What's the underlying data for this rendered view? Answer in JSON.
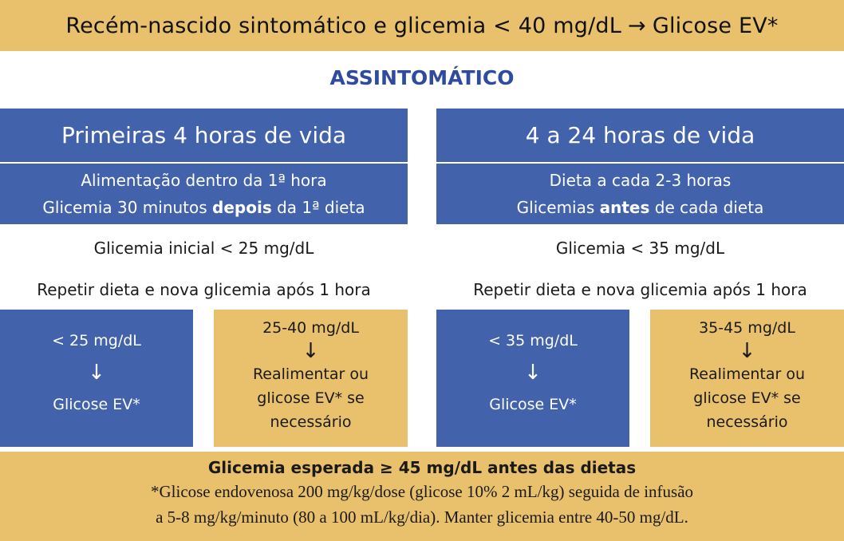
{
  "header": {
    "text": "Recém-nascido sintomático e glicemia < 40 mg/dL",
    "arrow": "→",
    "result": "Glicose EV*"
  },
  "section_title": "ASSINTOMÁTICO",
  "left": {
    "title": "Primeiras 4 horas de vida",
    "line1": "Alimentação dentro da 1ª hora",
    "line2_pre": "Glicemia 30 minutos ",
    "line2_bold": "depois",
    "line2_post": " da 1ª dieta",
    "condition": "Glicemia inicial < 25 mg/dL",
    "repeat": "Repetir dieta e nova glicemia após 1 hora",
    "box_low": {
      "threshold": "< 25 mg/dL",
      "arrow": "↓",
      "action": "Glicose EV*"
    },
    "box_mid": {
      "threshold": "25-40 mg/dL",
      "arrow": "↓",
      "action_line1": "Realimentar ou",
      "action_line2": "glicose EV* se",
      "action_line3": "necessário"
    }
  },
  "right": {
    "title": "4 a 24 horas de vida",
    "line1": "Dieta a cada 2-3 horas",
    "line2_pre": "Glicemias ",
    "line2_bold": "antes",
    "line2_post": " de cada dieta",
    "condition": "Glicemia < 35 mg/dL",
    "repeat": "Repetir dieta e nova glicemia após 1 hora",
    "box_low": {
      "threshold": "< 35 mg/dL",
      "arrow": "↓",
      "action": "Glicose EV*"
    },
    "box_mid": {
      "threshold": "35-45 mg/dL",
      "arrow": "↓",
      "action_line1": "Realimentar ou",
      "action_line2": "glicose EV* se",
      "action_line3": "necessário"
    }
  },
  "footer": {
    "expected_pre": "Glicemia esperada ",
    "expected_symbol": "≥",
    "expected_post": " 45 mg/dL antes das dietas",
    "note_line1": "*Glicose endovenosa 200 mg/kg/dose (glicose 10% 2 mL/kg) seguida de infusão",
    "note_line2": "a 5-8 mg/kg/minuto (80 a 100 mL/kg/dia). Manter glicemia entre 40-50 mg/dL."
  },
  "colors": {
    "blue": "#4262AC",
    "gold": "#E9C06C",
    "title_blue": "#2E4BA0"
  }
}
